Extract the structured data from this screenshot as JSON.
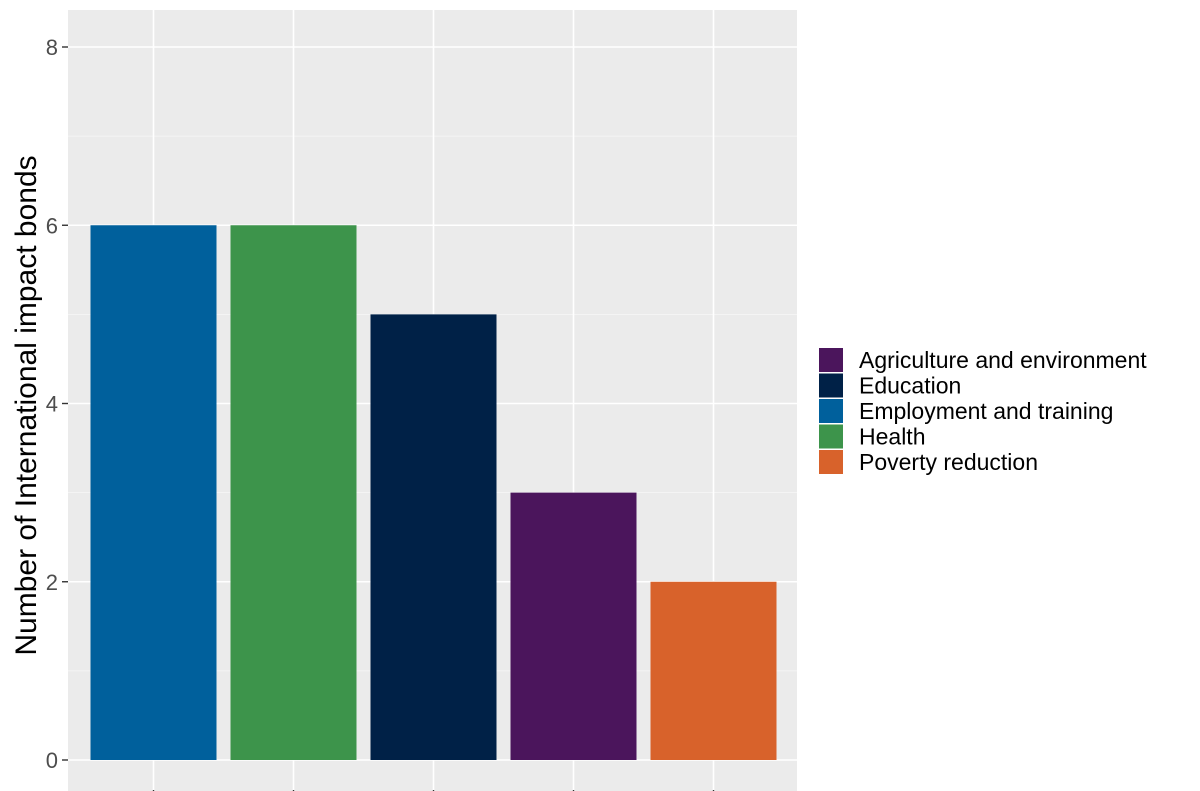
{
  "chart_data": {
    "type": "bar",
    "title": "",
    "xlabel": "",
    "ylabel": "Number of International impact bonds",
    "ylim": [
      0,
      8
    ],
    "yticks": [
      0,
      2,
      4,
      6,
      8
    ],
    "grid": true,
    "legend_position": "right",
    "categories": [
      "Employment and training",
      "Health",
      "Education",
      "Agriculture and environment",
      "Poverty reduction"
    ],
    "values": [
      6,
      6,
      5,
      3,
      2
    ],
    "bar_colors": [
      "#00609c",
      "#3d944b",
      "#002147",
      "#4b155c",
      "#d8622b"
    ],
    "legend": [
      {
        "label": "Agriculture and environment",
        "color": "#4b155c"
      },
      {
        "label": "Education",
        "color": "#002147"
      },
      {
        "label": "Employment and training",
        "color": "#00609c"
      },
      {
        "label": "Health",
        "color": "#3d944b"
      },
      {
        "label": "Poverty reduction",
        "color": "#d8622b"
      }
    ],
    "panel_background": "#ebebeb",
    "grid_color": "#ffffff"
  }
}
